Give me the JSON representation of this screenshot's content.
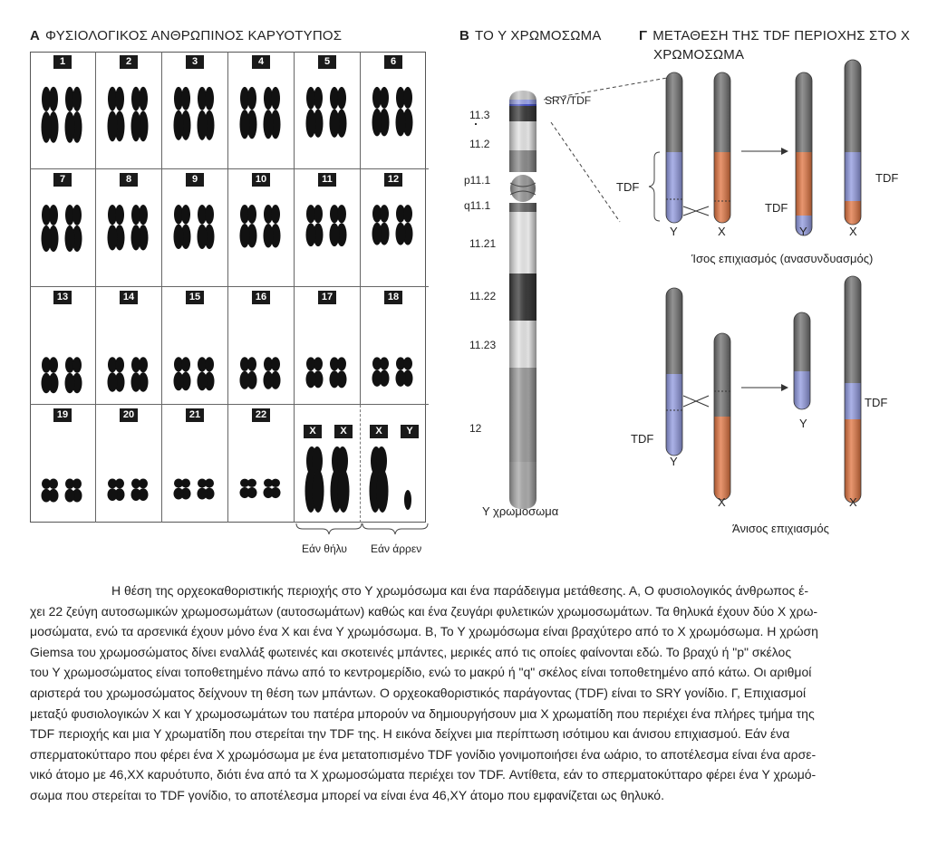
{
  "panels": {
    "a": {
      "letter": "A",
      "title": "ΦΥΣΙΟΛΟΓΙΚΟΣ ΑΝΘΡΩΠΙΝΟΣ ΚΑΡΥΟΤΥΠΟΣ"
    },
    "b": {
      "letter": "B",
      "title": "ΤΟ Υ ΧΡΩΜΟΣΩΜΑ"
    },
    "c": {
      "letter": "Γ",
      "title_line1": "ΜΕΤΑΘΕΣΗ ΤΗΣ TDF ΠΕΡΙΟΧΗΣ ΣΤΟ Χ",
      "title_line2": "ΧΡΩΜΟΣΩΜΑ"
    }
  },
  "karyotype": {
    "numbers": [
      "1",
      "2",
      "3",
      "4",
      "5",
      "6",
      "7",
      "8",
      "9",
      "10",
      "11",
      "12",
      "13",
      "14",
      "15",
      "16",
      "17",
      "18",
      "19",
      "20",
      "21",
      "22"
    ],
    "sex_female": [
      "X",
      "X"
    ],
    "sex_male": [
      "X",
      "Y"
    ],
    "female_label": "Εάν θήλυ",
    "male_label": "Εάν άρρεν"
  },
  "y_chromosome": {
    "bands": [
      "11.3",
      "11.2",
      "p11.1",
      "q11.1",
      "11.21",
      "11.22",
      "11.23",
      "12"
    ],
    "sry_label": "SRY/TDF",
    "caption": "Y χρωμόσωμα"
  },
  "crossover": {
    "tdf": "TDF",
    "y": "Y",
    "x": "X",
    "equal_caption": "Ίσος επιχιασμός (ανασυνδυασμός)",
    "unequal_caption": "Άνισος επιχιασμός",
    "colors": {
      "grey": "#6e6e6e",
      "blue": "#8f98df",
      "orange": "#e0733f"
    }
  },
  "caption": {
    "lead": "Η θέση της ορχεοκαθοριστικής περιοχής στο Υ χρωμόσωμα και ένα παράδειγμα μετάθεσης. Α, Ο φυσιολογικός άνθρωπος έ-",
    "lines": [
      "χει 22 ζεύγη αυτοσωμικών χρωμοσωμάτων (αυτοσωμάτων) καθώς και ένα ζευγάρι φυλετικών χρωμοσωμάτων. Τα θηλυκά έχουν δύο Χ χρω-",
      "μοσώματα, ενώ τα αρσενικά έχουν μόνο ένα Χ και ένα Υ χρωμόσωμα. Β, Το Υ χρωμόσωμα είναι βραχύτερο από το Χ χρωμόσωμα. Η χρώση",
      "Giemsa του χρωμοσώματος δίνει εναλλάξ φωτεινές και σκοτεινές μπάντες, μερικές από τις οποίες φαίνονται εδώ. Το βραχύ ή \"p\" σκέλος",
      "του Υ χρωμοσώματος είναι τοποθετημένο πάνω από το κεντρομερίδιο, ενώ το μακρύ ή \"q\" σκέλος είναι τοποθετημένο από κάτω. Οι αριθμοί",
      "αριστερά του χρωμοσώματος δείχνουν τη θέση των μπάντων. Ο ορχεοκαθοριστικός παράγοντας (TDF) είναι το SRY γονίδιο. Γ, Επιχιασμοί",
      "μεταξύ φυσιολογικών Χ και Υ χρωμοσωμάτων του πατέρα μπορούν να δημιουργήσουν μια Χ χρωματίδη που περιέχει ένα πλήρες τμήμα της",
      "TDF περιοχής και μια Υ χρωματίδη που στερείται την TDF της. Η εικόνα δείχνει μια περίπτωση ισότιμου και άνισου επιχιασμού. Εάν ένα",
      "σπερματοκύτταρο που φέρει ένα Χ χρωμόσωμα με ένα μετατοπισμένο TDF γονίδιο γονιμοποιήσει ένα ωάριο, το αποτέλεσμα είναι ένα αρσε-",
      "νικό άτομο με 46,ΧΧ καρυότυπο, διότι ένα από τα Χ χρωμοσώματα περιέχει τον TDF. Αντίθετα, εάν το σπερματοκύτταρο φέρει ένα Υ χρωμό-",
      "σωμα που στερείται το TDF γονίδιο, το αποτέλεσμα μπορεί να είναι ένα 46,XY άτομο που εμφανίζεται ως θηλυκό."
    ]
  }
}
